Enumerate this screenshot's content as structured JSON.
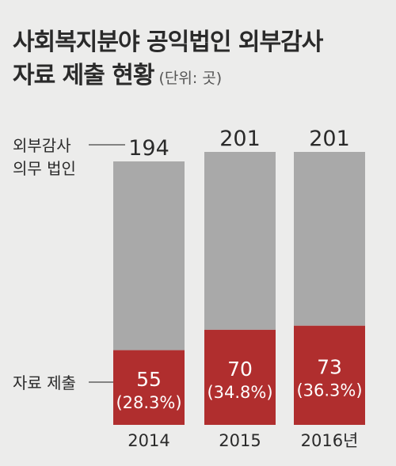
{
  "chart_data": {
    "type": "bar",
    "stacked": true,
    "title_line1": "사회복지분야 공익법인 외부감사",
    "title_line2": "자료 제출 현황",
    "unit": "(단위: 곳)",
    "categories": [
      "2014",
      "2015",
      "2016년"
    ],
    "series": [
      {
        "name": "자료 제출",
        "values": [
          55,
          70,
          73
        ],
        "percent_labels": [
          "(28.3%)",
          "(34.8%)",
          "(36.3%)"
        ],
        "color": "#b02e2e"
      },
      {
        "name": "외부감사 의무 법인",
        "values": [
          139,
          131,
          128
        ],
        "color": "#a9a9a9"
      }
    ],
    "totals": [
      194,
      201,
      201
    ],
    "total_series_label": [
      "외부감사",
      "의무 법인"
    ],
    "submitted_series_label": "자료 제출",
    "ylim": [
      0,
      201
    ],
    "grid": false,
    "legend": "inline-left"
  },
  "colors": {
    "background": "#ececeb",
    "submitted": "#b02e2e",
    "total": "#a9a9a9",
    "text": "#2a2a2a"
  }
}
